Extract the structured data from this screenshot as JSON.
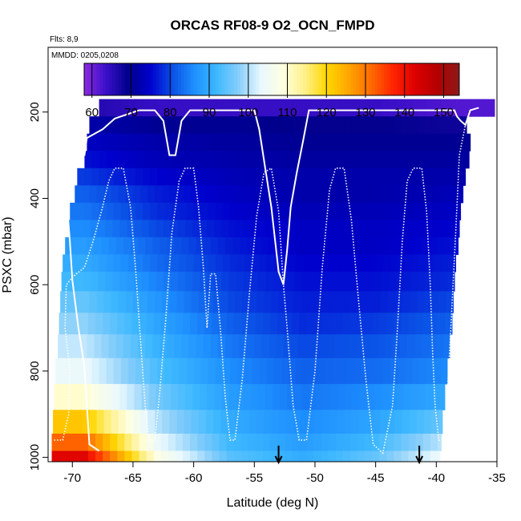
{
  "chart_data": {
    "type": "heatmap",
    "title": "ORCAS RF08-9 O2_OCN_FMPD",
    "subtitle_flights": "Flts: 8,9",
    "annotation_mmdd": "MMDD: 0205,0208",
    "xlabel": "Latitude (deg N)",
    "ylabel": "PSXC (mbar)",
    "xlim": [
      -72,
      -35
    ],
    "ylim": [
      1010,
      50
    ],
    "y_reversed": true,
    "x_ticks": [
      -70,
      -65,
      -60,
      -55,
      -50,
      -45,
      -40,
      -35
    ],
    "y_ticks": [
      200,
      400,
      600,
      800,
      1000
    ],
    "colorbar": {
      "range": [
        58,
        154
      ],
      "ticks": [
        60,
        70,
        80,
        90,
        100,
        110,
        120,
        130,
        140,
        150
      ],
      "colors": [
        "#8b2be2",
        "#3a0fc8",
        "#00008b",
        "#0000cd",
        "#0a50e6",
        "#1e90ff",
        "#3db8ff",
        "#87cefa",
        "#e8f8ff",
        "#ffffe0",
        "#fff08a",
        "#ffd700",
        "#ffa500",
        "#ff6a00",
        "#ff2400",
        "#dc0000",
        "#b40000",
        "#8b1a1a"
      ]
    },
    "pressure_levels": [
      190,
      230,
      270,
      310,
      350,
      390,
      430,
      470,
      510,
      550,
      590,
      640,
      690,
      740,
      800,
      860,
      920,
      970,
      1000
    ],
    "level_extents": [
      {
        "p": 190,
        "xmin": -67.8,
        "xmax": -35.2
      },
      {
        "p": 230,
        "xmin": -68.6,
        "xmax": -37.5
      },
      {
        "p": 270,
        "xmin": -68.8,
        "xmax": -37.2
      },
      {
        "p": 310,
        "xmin": -69.0,
        "xmax": -37.3
      },
      {
        "p": 350,
        "xmin": -69.6,
        "xmax": -37.6
      },
      {
        "p": 390,
        "xmin": -69.8,
        "xmax": -37.8
      },
      {
        "p": 430,
        "xmin": -70.2,
        "xmax": -38.0
      },
      {
        "p": 470,
        "xmin": -70.3,
        "xmax": -38.1
      },
      {
        "p": 510,
        "xmin": -70.6,
        "xmax": -38.2
      },
      {
        "p": 550,
        "xmin": -70.8,
        "xmax": -38.4
      },
      {
        "p": 590,
        "xmin": -70.9,
        "xmax": -38.5
      },
      {
        "p": 640,
        "xmin": -71.0,
        "xmax": -38.6
      },
      {
        "p": 690,
        "xmin": -71.1,
        "xmax": -38.7
      },
      {
        "p": 740,
        "xmin": -71.2,
        "xmax": -38.9
      },
      {
        "p": 800,
        "xmin": -71.4,
        "xmax": -39.1
      },
      {
        "p": 860,
        "xmin": -71.5,
        "xmax": -39.3
      },
      {
        "p": 920,
        "xmin": -71.6,
        "xmax": -39.5
      },
      {
        "p": 970,
        "xmin": -71.7,
        "xmax": -39.6
      },
      {
        "p": 1000,
        "xmin": -71.7,
        "xmax": -39.7
      }
    ],
    "profile_fields": [
      {
        "lat_min": -72,
        "lat_max": -66,
        "values": [
          66,
          72,
          74,
          76,
          79,
          82,
          84,
          86,
          88,
          90,
          92,
          95,
          98,
          101,
          104,
          110,
          122,
          132,
          142
        ]
      },
      {
        "lat_min": -66,
        "lat_max": -60,
        "values": [
          64,
          70,
          72,
          73,
          75,
          77,
          78,
          80,
          82,
          83,
          85,
          87,
          89,
          91,
          93,
          96,
          100,
          104,
          108
        ]
      },
      {
        "lat_min": -60,
        "lat_max": -54,
        "values": [
          64,
          70,
          71,
          72,
          73,
          74,
          75,
          76,
          77,
          78,
          79,
          80,
          82,
          84,
          86,
          88,
          90,
          92,
          94
        ]
      },
      {
        "lat_min": -54,
        "lat_max": -48,
        "values": [
          64,
          69,
          70,
          71,
          72,
          72,
          73,
          74,
          74,
          75,
          76,
          77,
          78,
          80,
          82,
          84,
          86,
          88,
          90
        ]
      },
      {
        "lat_min": -48,
        "lat_max": -42,
        "values": [
          64,
          69,
          70,
          71,
          72,
          72,
          73,
          74,
          74,
          75,
          76,
          77,
          79,
          81,
          83,
          86,
          89,
          92,
          95
        ]
      },
      {
        "lat_min": -42,
        "lat_max": -35,
        "values": [
          62,
          68,
          70,
          71,
          72,
          73,
          74,
          75,
          76,
          77,
          78,
          80,
          82,
          84,
          86,
          90,
          96,
          102,
          106
        ]
      }
    ],
    "flight_track_solid": [
      [
        -67.8,
        985
      ],
      [
        -68.6,
        970
      ],
      [
        -68.8,
        880
      ],
      [
        -69.0,
        790
      ],
      [
        -69.5,
        700
      ],
      [
        -70.0,
        590
      ],
      [
        -70.2,
        500
      ],
      [
        -70.5,
        390
      ],
      [
        -69.9,
        380
      ],
      [
        -69.8,
        320
      ],
      [
        -69.0,
        300
      ],
      [
        -68.8,
        260
      ],
      [
        -67.5,
        240
      ],
      [
        -66.5,
        215
      ],
      [
        -64.5,
        196
      ],
      [
        -63.2,
        196
      ],
      [
        -62.5,
        220
      ],
      [
        -62.0,
        300
      ],
      [
        -61.5,
        300
      ],
      [
        -61.0,
        220
      ],
      [
        -60.3,
        196
      ],
      [
        -58.0,
        196
      ],
      [
        -56.5,
        196
      ],
      [
        -55.0,
        196
      ],
      [
        -54.6,
        240
      ],
      [
        -54.1,
        330
      ],
      [
        -53.6,
        420
      ],
      [
        -53.0,
        570
      ],
      [
        -52.6,
        600
      ],
      [
        -52.3,
        520
      ],
      [
        -52.0,
        420
      ],
      [
        -51.5,
        340
      ],
      [
        -51.0,
        270
      ],
      [
        -50.5,
        196
      ],
      [
        -48.0,
        196
      ],
      [
        -46.0,
        196
      ],
      [
        -44.5,
        196
      ],
      [
        -43.0,
        196
      ],
      [
        -41.0,
        196
      ],
      [
        -40.0,
        196
      ],
      [
        -38.5,
        196
      ],
      [
        -38.3,
        210
      ],
      [
        -38.0,
        220
      ],
      [
        -37.6,
        230
      ],
      [
        -37.2,
        196
      ],
      [
        -36.5,
        190
      ]
    ],
    "flight_track_dotted": [
      [
        -71.5,
        960
      ],
      [
        -70.8,
        960
      ],
      [
        -70.3,
        900
      ],
      [
        -70.2,
        800
      ],
      [
        -70.6,
        700
      ],
      [
        -70.5,
        600
      ],
      [
        -69.9,
        580
      ],
      [
        -69.0,
        560
      ],
      [
        -68.3,
        500
      ],
      [
        -67.6,
        430
      ],
      [
        -67.0,
        360
      ],
      [
        -66.5,
        330
      ],
      [
        -65.8,
        330
      ],
      [
        -65.2,
        420
      ],
      [
        -64.8,
        560
      ],
      [
        -64.4,
        720
      ],
      [
        -64.0,
        880
      ],
      [
        -63.7,
        960
      ],
      [
        -63.2,
        960
      ],
      [
        -62.8,
        850
      ],
      [
        -62.3,
        680
      ],
      [
        -61.8,
        480
      ],
      [
        -61.2,
        360
      ],
      [
        -60.7,
        330
      ],
      [
        -60.0,
        330
      ],
      [
        -59.6,
        420
      ],
      [
        -59.2,
        560
      ],
      [
        -58.9,
        700
      ],
      [
        -58.6,
        575
      ],
      [
        -58.2,
        575
      ],
      [
        -57.8,
        700
      ],
      [
        -57.4,
        860
      ],
      [
        -57.0,
        960
      ],
      [
        -56.6,
        960
      ],
      [
        -56.0,
        820
      ],
      [
        -55.4,
        620
      ],
      [
        -54.8,
        440
      ],
      [
        -54.2,
        340
      ],
      [
        -53.6,
        330
      ],
      [
        -53.0,
        430
      ],
      [
        -52.6,
        600
      ],
      [
        -52.3,
        700
      ],
      [
        -51.8,
        880
      ],
      [
        -51.3,
        960
      ],
      [
        -50.7,
        960
      ],
      [
        -50.0,
        800
      ],
      [
        -49.4,
        560
      ],
      [
        -48.8,
        380
      ],
      [
        -48.3,
        330
      ],
      [
        -47.6,
        330
      ],
      [
        -47.0,
        450
      ],
      [
        -46.4,
        640
      ],
      [
        -45.8,
        820
      ],
      [
        -45.2,
        970
      ],
      [
        -44.4,
        990
      ],
      [
        -43.6,
        880
      ],
      [
        -43.2,
        700
      ],
      [
        -42.8,
        500
      ],
      [
        -42.4,
        360
      ],
      [
        -41.9,
        330
      ],
      [
        -41.2,
        330
      ],
      [
        -40.8,
        430
      ],
      [
        -40.5,
        600
      ],
      [
        -40.3,
        760
      ],
      [
        -40.1,
        880
      ],
      [
        -39.8,
        960
      ],
      [
        -39.3,
        960
      ],
      [
        -38.8,
        700
      ],
      [
        -38.4,
        480
      ],
      [
        -38.1,
        300
      ],
      [
        -37.6,
        230
      ]
    ],
    "arrow_markers_lat": [
      -53.0,
      -41.4
    ]
  }
}
